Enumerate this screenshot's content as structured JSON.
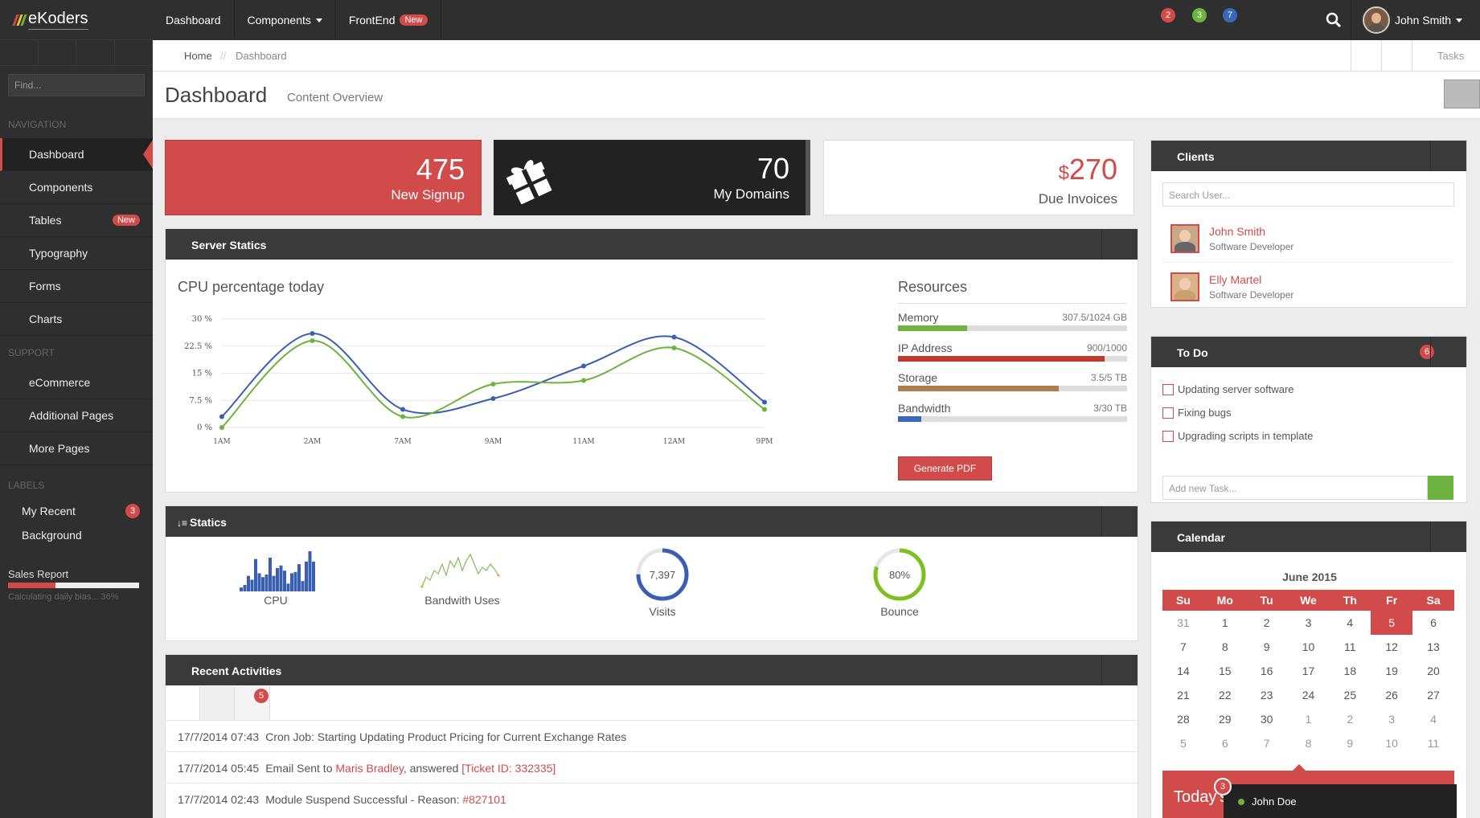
{
  "app": {
    "name": "eKoders",
    "stripe_colors": [
      "#d14b4b",
      "#f0c419",
      "#6db33f"
    ]
  },
  "sidebar": {
    "find_placeholder": "Find...",
    "nav_heading": "NAVIGATION",
    "nav": [
      {
        "label": "Dashboard",
        "active": true
      },
      {
        "label": "Components"
      },
      {
        "label": "Tables",
        "badge": "New"
      },
      {
        "label": "Typography"
      },
      {
        "label": "Forms"
      },
      {
        "label": "Charts"
      }
    ],
    "support_heading": "SUPPORT",
    "support": [
      {
        "label": "eCommerce"
      },
      {
        "label": "Additional Pages"
      },
      {
        "label": "More Pages"
      }
    ],
    "labels_heading": "LABELS",
    "labels": [
      {
        "label": "My Recent",
        "badge": "3"
      },
      {
        "label": "Background"
      }
    ],
    "sales": {
      "title": "Sales Report",
      "sub": "Calculating daily bias... 36%",
      "progress": 0.36
    }
  },
  "topbar": {
    "nav": [
      {
        "label": "Dashboard"
      },
      {
        "label": "Components",
        "dropdown": true
      },
      {
        "label": "FrontEnd",
        "badge": "New"
      }
    ],
    "notifications": [
      {
        "count": "2",
        "color": "#d14b4b"
      },
      {
        "count": "3",
        "color": "#6db33f"
      },
      {
        "count": "7",
        "color": "#3a68b8"
      }
    ],
    "user": "John Smith"
  },
  "breadcrumb": {
    "home": "Home",
    "separator": "//",
    "current": "Dashboard",
    "tasks": "Tasks"
  },
  "page": {
    "title": "Dashboard",
    "subtitle": "Content Overview"
  },
  "stats": [
    {
      "value": "475",
      "label": "New Signup"
    },
    {
      "value": "70",
      "label": "My Domains"
    },
    {
      "currency": "$",
      "value": "270",
      "label": "Due Invoices"
    }
  ],
  "server": {
    "title": "Server Statics",
    "chart_title": "CPU percentage today",
    "resources_title": "Resources",
    "resources": [
      {
        "name": "Memory",
        "value": "307.5/1024 GB",
        "fill": 0.3,
        "color": "#6db33f"
      },
      {
        "name": "IP Address",
        "value": "900/1000",
        "fill": 0.9,
        "color": "#c0392b"
      },
      {
        "name": "Storage",
        "value": "3.5/5 TB",
        "fill": 0.7,
        "color": "#b07d4f"
      },
      {
        "name": "Bandwidth",
        "value": "3/30 TB",
        "fill": 0.1,
        "color": "#3a68b8"
      }
    ],
    "pdf_label": "Generate PDF"
  },
  "chart_data": {
    "type": "line",
    "categories": [
      "1AM",
      "2AM",
      "7AM",
      "9AM",
      "11AM",
      "12AM",
      "9PM"
    ],
    "series": [
      {
        "values": [
          3,
          26,
          5,
          8,
          17,
          25,
          7
        ],
        "color": "#3a5fb0"
      },
      {
        "values": [
          0,
          24,
          3,
          12,
          13,
          22,
          5
        ],
        "color": "#6db33f"
      }
    ],
    "yticks": [
      "0 %",
      "7.5 %",
      "15 %",
      "22.5 %",
      "30 %"
    ],
    "ylim": [
      0,
      30
    ],
    "grid": true
  },
  "statics": {
    "title": "Statics",
    "cpu_label": "CPU",
    "cpu_bars": [
      3,
      5,
      12,
      9,
      25,
      14,
      11,
      13,
      26,
      12,
      18,
      20,
      16,
      6,
      14,
      15,
      21,
      8,
      23,
      31,
      23
    ],
    "bandwidth_label": "Bandwith Uses",
    "bandwidth_line": [
      2,
      8,
      6,
      12,
      10,
      16,
      9,
      18,
      14,
      20,
      12,
      18,
      22,
      16,
      10,
      14,
      12,
      16,
      13,
      9
    ],
    "visits_value": "7,397",
    "visits_label": "Visits",
    "visits_fill": 0.75,
    "bounce_value": "80%",
    "bounce_label": "Bounce",
    "bounce_fill": 0.8
  },
  "recent": {
    "title": "Recent Activities",
    "badge": "5",
    "rows": [
      {
        "time": "17/7/2014 07:43",
        "text": "Cron Job: Starting Updating Product Pricing for Current Exchange Rates"
      },
      {
        "time": "17/7/2014 05:45",
        "pre": "Email Sent to ",
        "link": "Maris Bradley",
        "mid": ", answered ",
        "link2": "[Ticket ID: 332335]"
      },
      {
        "time": "17/7/2014 02:43",
        "pre": "Module Suspend Successful - Reason: ",
        "link": "#827101"
      }
    ]
  },
  "clients": {
    "title": "Clients",
    "search_placeholder": "Search User...",
    "list": [
      {
        "name": "John Smith",
        "role": "Software Developer"
      },
      {
        "name": "Elly Martel",
        "role": "Software Developer"
      }
    ]
  },
  "todo": {
    "title": "To Do",
    "badge": "6",
    "items": [
      "Updating server software",
      "Fixing bugs",
      "Upgrading scripts in template"
    ],
    "add_placeholder": "Add new Task..."
  },
  "calendar": {
    "title": "Calendar",
    "month": "June 2015",
    "days": [
      "Su",
      "Mo",
      "Tu",
      "We",
      "Th",
      "Fr",
      "Sa"
    ],
    "weeks": [
      [
        "31",
        "1",
        "2",
        "3",
        "4",
        "5",
        "6"
      ],
      [
        "7",
        "8",
        "9",
        "10",
        "11",
        "12",
        "13"
      ],
      [
        "14",
        "15",
        "16",
        "17",
        "18",
        "19",
        "20"
      ],
      [
        "21",
        "22",
        "23",
        "24",
        "25",
        "26",
        "27"
      ],
      [
        "28",
        "29",
        "30",
        "1",
        "2",
        "3",
        "4"
      ],
      [
        "5",
        "6",
        "7",
        "8",
        "9",
        "10",
        "11"
      ]
    ],
    "today": "5",
    "banner": "Today's"
  },
  "chat": {
    "name": "John Doe",
    "badge": "3"
  }
}
